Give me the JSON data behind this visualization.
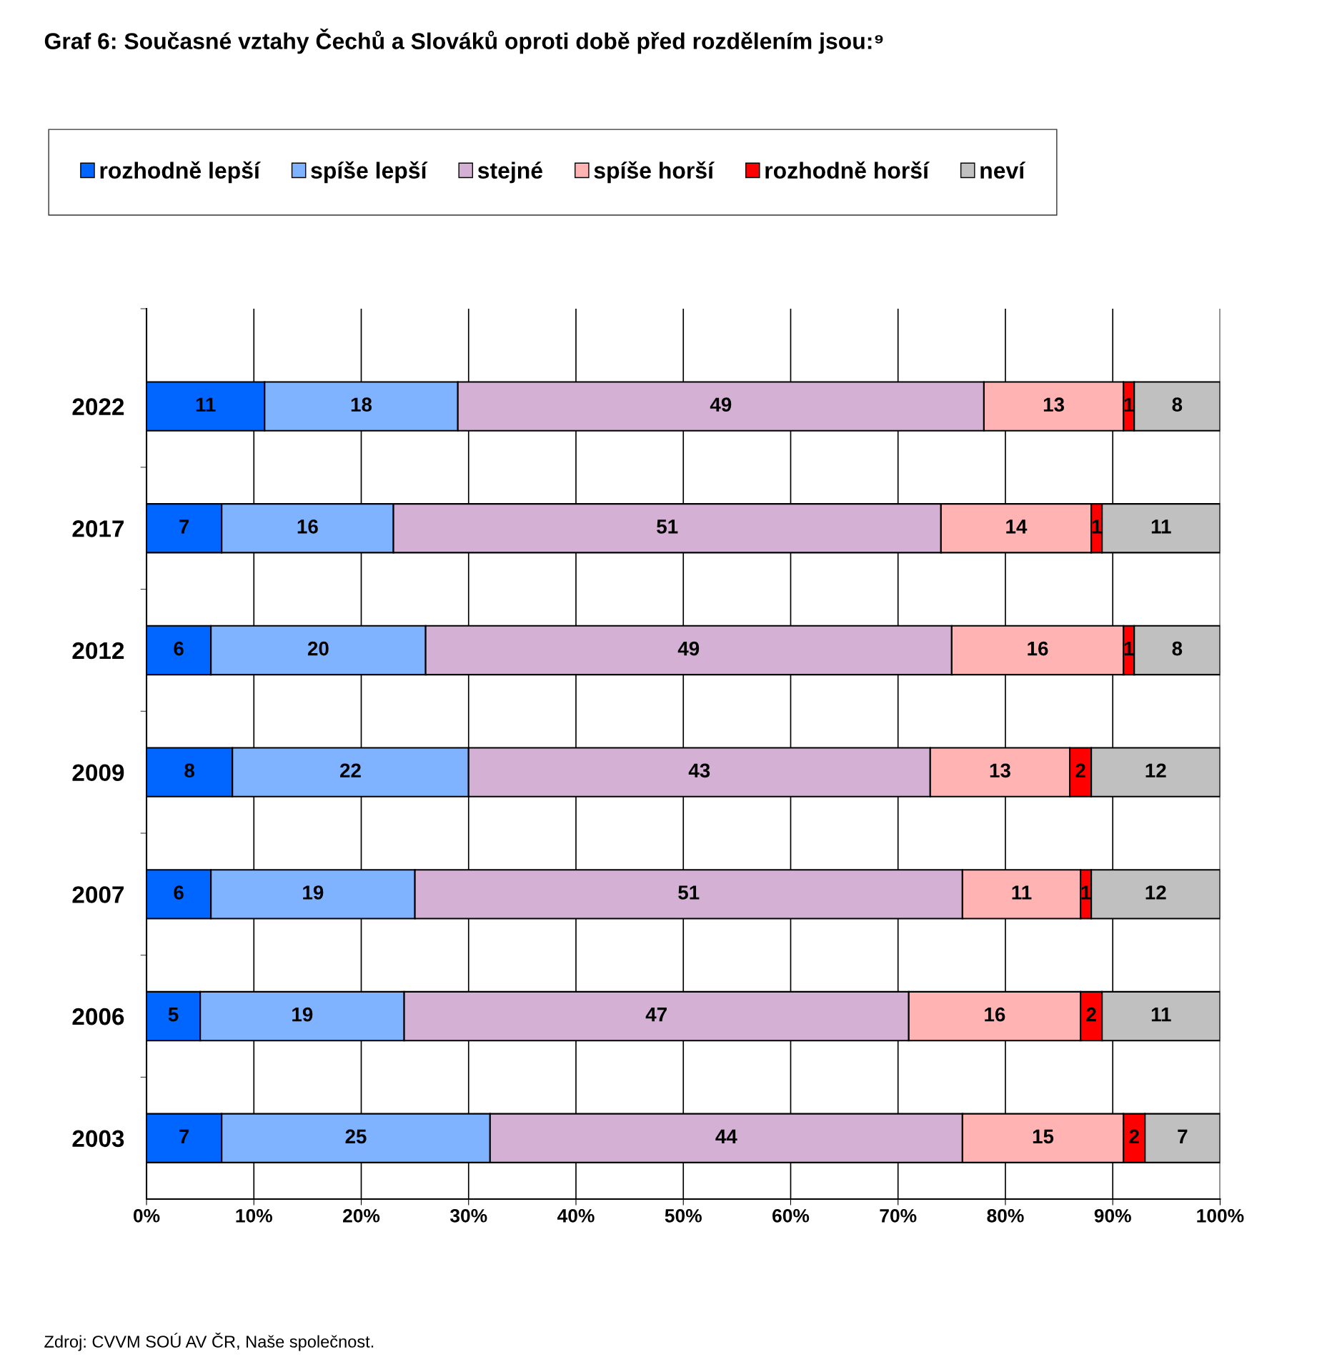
{
  "chart_data": {
    "type": "bar",
    "orientation": "horizontal",
    "stacked": true,
    "title": "Graf 6: Současné vztahy Čechů a Slováků oproti době před rozdělením jsou:⁹",
    "categories": [
      "2022",
      "2017",
      "2012",
      "2009",
      "2007",
      "2006",
      "2003"
    ],
    "series": [
      {
        "name": "rozhodně lepší",
        "color": "#0066ff",
        "values": [
          11,
          7,
          6,
          8,
          6,
          5,
          7
        ]
      },
      {
        "name": "spíše lepší",
        "color": "#80b3ff",
        "values": [
          18,
          16,
          20,
          22,
          19,
          19,
          25
        ]
      },
      {
        "name": "stejné",
        "color": "#d4b0d4",
        "values": [
          49,
          51,
          49,
          43,
          51,
          47,
          44
        ]
      },
      {
        "name": "spíše horší",
        "color": "#ffb3b3",
        "values": [
          13,
          14,
          16,
          13,
          11,
          16,
          15
        ]
      },
      {
        "name": "rozhodně horší",
        "color": "#ff0000",
        "values": [
          1,
          1,
          1,
          2,
          1,
          2,
          2
        ]
      },
      {
        "name": "neví",
        "color": "#c0c0c0",
        "values": [
          8,
          11,
          8,
          12,
          12,
          11,
          7
        ]
      }
    ],
    "xlim": [
      0,
      100
    ],
    "xticks": [
      {
        "value": 0,
        "label": "0%"
      },
      {
        "value": 10,
        "label": "10%"
      },
      {
        "value": 20,
        "label": "20%"
      },
      {
        "value": 30,
        "label": "30%"
      },
      {
        "value": 40,
        "label": "40%"
      },
      {
        "value": 50,
        "label": "50%"
      },
      {
        "value": 60,
        "label": "60%"
      },
      {
        "value": 70,
        "label": "70%"
      },
      {
        "value": 80,
        "label": "80%"
      },
      {
        "value": 90,
        "label": "90%"
      },
      {
        "value": 100,
        "label": "100%"
      }
    ],
    "grid": "x",
    "legend": "top",
    "data_labels": true,
    "annotations": [
      "Zdroj: CVVM SOÚ AV ČR, Naše společnost."
    ]
  }
}
